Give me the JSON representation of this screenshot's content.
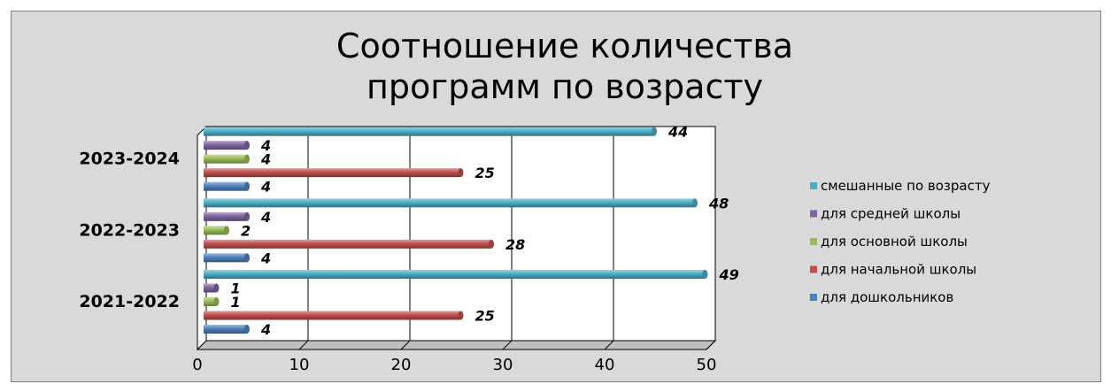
{
  "chart_data": {
    "type": "bar",
    "orientation": "horizontal",
    "title": "Соотношение количества программ по возрасту",
    "title_lines": [
      "Соотношение количества",
      "программ по возрасту"
    ],
    "categories": [
      "2021-2022",
      "2022-2023",
      "2023-2024"
    ],
    "series": [
      {
        "name": "для дошкольников",
        "color": "#4f81bd",
        "values": [
          4,
          4,
          4
        ]
      },
      {
        "name": "для начальной школы",
        "color": "#c0504d",
        "values": [
          25,
          28,
          25
        ]
      },
      {
        "name": "для основной школы",
        "color": "#9bbb59",
        "values": [
          1,
          2,
          4
        ]
      },
      {
        "name": "для средней школы",
        "color": "#8064a2",
        "values": [
          1,
          4,
          4
        ]
      },
      {
        "name": "смешанные по возрасту",
        "color": "#4bacc6",
        "values": [
          49,
          48,
          44
        ]
      }
    ],
    "xlim": [
      0,
      50
    ],
    "xticks": [
      "0",
      "10",
      "20",
      "30",
      "40",
      "50"
    ],
    "xlabel": "",
    "ylabel": "",
    "grid": true,
    "legend_position": "right",
    "data_labels": true
  }
}
